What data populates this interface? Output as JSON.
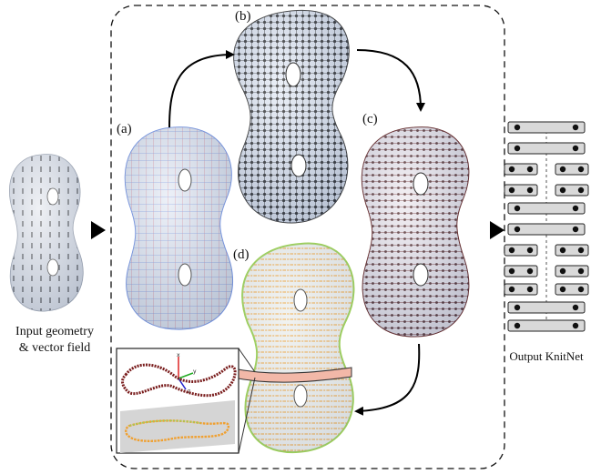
{
  "labels": {
    "a": "(a)",
    "b": "(b)",
    "c": "(c)",
    "d": "(d)"
  },
  "input_caption": {
    "line1": "Input geometry",
    "line2": "& vector field"
  },
  "output_caption": "Output KnitNet",
  "colors": {
    "mesh_fill": "#dfe6f2",
    "mesh_shadow": "#b9c4d8",
    "grid_red": "#d97a8a",
    "grid_blue": "#6f8fe0",
    "dot_black": "#111111",
    "dot_maroon": "#5a1a1a",
    "course_orange": "#f0a030",
    "course_green": "#9ccf5a",
    "band_pink": "#f2b8a8",
    "knit_block": "#d9d9d9"
  },
  "icons": [
    "arrow-right-triangle",
    "curved-flow-arrow"
  ]
}
